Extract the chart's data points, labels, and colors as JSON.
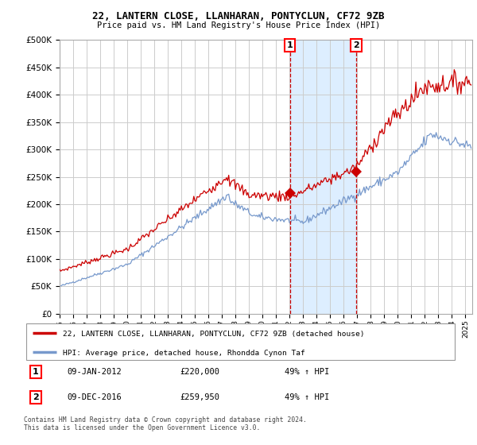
{
  "title": "22, LANTERN CLOSE, LLANHARAN, PONTYCLUN, CF72 9ZB",
  "subtitle": "Price paid vs. HM Land Registry's House Price Index (HPI)",
  "red_label": "22, LANTERN CLOSE, LLANHARAN, PONTYCLUN, CF72 9ZB (detached house)",
  "blue_label": "HPI: Average price, detached house, Rhondda Cynon Taf",
  "sale1_date": "09-JAN-2012",
  "sale1_price": 220000,
  "sale1_pct": "49% ↑ HPI",
  "sale2_date": "09-DEC-2016",
  "sale2_price": 259950,
  "sale2_pct": "49% ↑ HPI",
  "footer": "Contains HM Land Registry data © Crown copyright and database right 2024.\nThis data is licensed under the Open Government Licence v3.0.",
  "ylim": [
    0,
    500000
  ],
  "yticks": [
    0,
    50000,
    100000,
    150000,
    200000,
    250000,
    300000,
    350000,
    400000,
    450000,
    500000
  ],
  "xlim_start": 1995.0,
  "xlim_end": 2025.5,
  "sale1_x": 2012.03,
  "sale2_x": 2016.92,
  "highlight_x_start": 2012.03,
  "highlight_x_end": 2016.92,
  "red_color": "#cc0000",
  "blue_color": "#7799cc",
  "highlight_color": "#ddeeff",
  "grid_color": "#cccccc",
  "background_color": "#ffffff"
}
